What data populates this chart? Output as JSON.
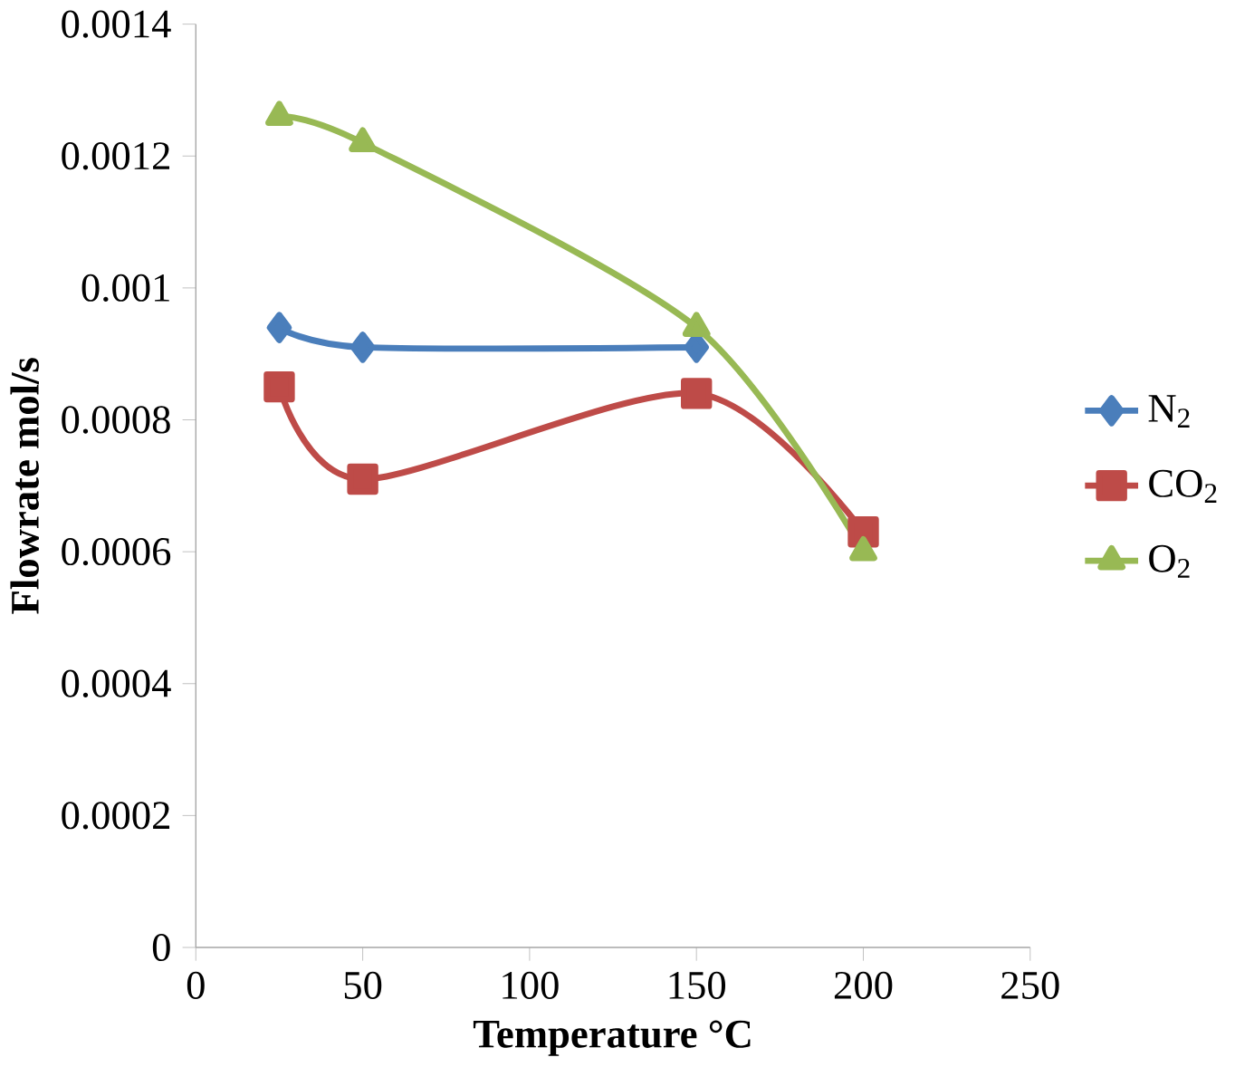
{
  "chart_data": {
    "type": "line",
    "xlabel": "Temperature °C",
    "ylabel": "Flowrate mol/s",
    "x": [
      25,
      50,
      150,
      200
    ],
    "series": [
      {
        "name": "N$_{2}$",
        "color": "#4a7ebb",
        "marker": "diamond",
        "values": [
          0.00094,
          0.00091,
          0.00091,
          null
        ]
      },
      {
        "name": "CO$_{2}$",
        "color": "#be4b48",
        "marker": "square",
        "values": [
          0.00085,
          0.00071,
          0.00084,
          0.00063
        ]
      },
      {
        "name": "O$_{2}$",
        "color": "#98b954",
        "marker": "triangle",
        "values": [
          0.00126,
          0.00122,
          0.00094,
          0.0006
        ]
      }
    ],
    "xlim": [
      0,
      250
    ],
    "xticks": [
      0,
      50,
      100,
      150,
      200,
      250
    ],
    "ylim": [
      0,
      0.0014
    ],
    "yticks": [
      0,
      0.0002,
      0.0004,
      0.0006,
      0.0008,
      0.001,
      0.0012,
      0.0014
    ],
    "legend": "right",
    "grid": false
  }
}
